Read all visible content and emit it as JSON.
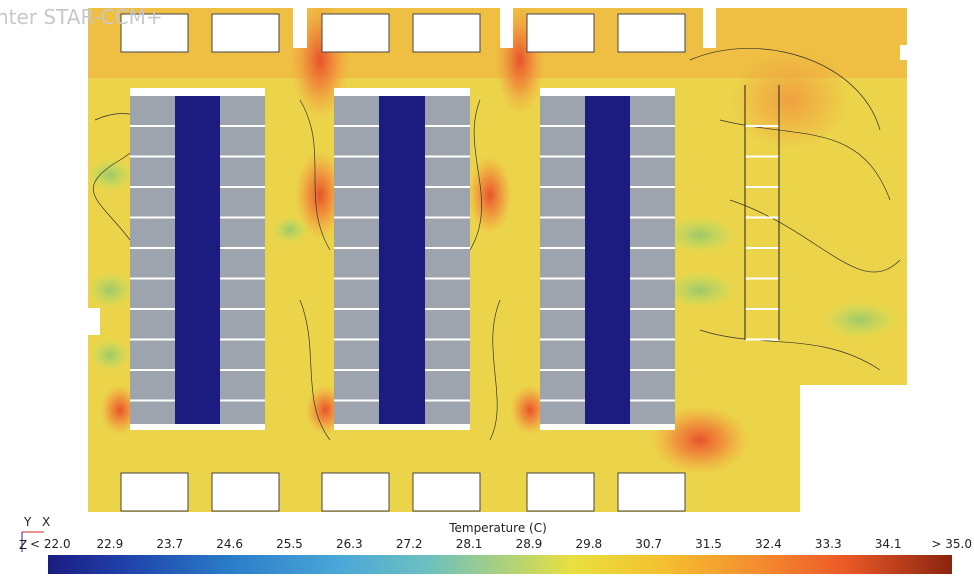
{
  "watermark": "nter STAR-CCM+",
  "triad": {
    "y": "Y",
    "x": "X",
    "z": "Z"
  },
  "legend": {
    "title": "Temperature (C)",
    "labels": [
      "< 22.0",
      "22.9",
      "23.7",
      "24.6",
      "25.5",
      "26.3",
      "27.2",
      "28.1",
      "28.9",
      "29.8",
      "30.7",
      "31.5",
      "32.4",
      "33.3",
      "34.1",
      "> 35.0"
    ]
  }
}
